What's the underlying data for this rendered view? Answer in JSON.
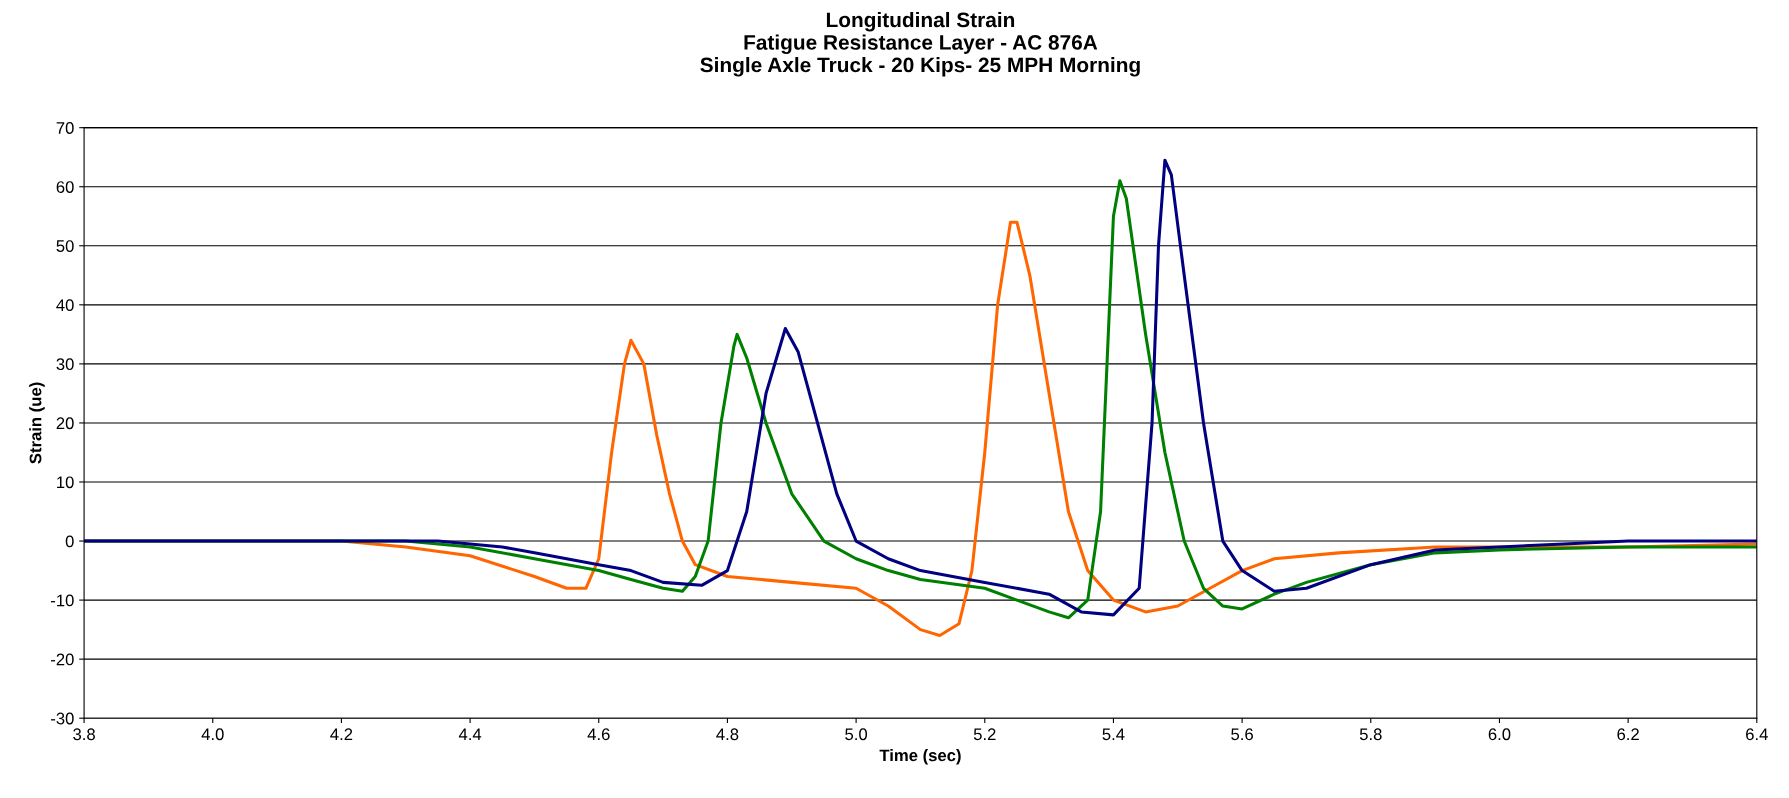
{
  "chart_data": {
    "type": "line",
    "title": "Longitudinal Strain\nFatigue Resistance Layer - AC 876A\nSingle Axle Truck - 20 Kips- 25 MPH Morning",
    "xlabel": "Time (sec)",
    "ylabel": "Strain (ue)",
    "xlim": [
      3.8,
      6.4
    ],
    "xticks": [
      {
        "value": 3.8,
        "label": "3.8"
      },
      {
        "value": 4.0,
        "label": "4.0"
      },
      {
        "value": 4.2,
        "label": "4.2"
      },
      {
        "value": 4.4,
        "label": "4.4"
      },
      {
        "value": 4.6,
        "label": "4.6"
      },
      {
        "value": 4.8,
        "label": "4.8"
      },
      {
        "value": 5.0,
        "label": "5.0"
      },
      {
        "value": 5.2,
        "label": "5.2"
      },
      {
        "value": 5.4,
        "label": "5.4"
      },
      {
        "value": 5.6,
        "label": "5.6"
      },
      {
        "value": 5.8,
        "label": "5.8"
      },
      {
        "value": 6.0,
        "label": "6.0"
      },
      {
        "value": 6.2,
        "label": "6.2"
      },
      {
        "value": 6.4,
        "label": "6.4"
      }
    ],
    "ylim": [
      -30,
      70
    ],
    "yticks": [
      -30,
      -20,
      -10,
      0,
      10,
      20,
      30,
      40,
      50,
      60,
      70
    ],
    "grid": "y",
    "legend": false,
    "series": [
      {
        "color": "#ff6600",
        "x": [
          3.8,
          4.0,
          4.2,
          4.3,
          4.4,
          4.5,
          4.55,
          4.58,
          4.6,
          4.62,
          4.64,
          4.65,
          4.67,
          4.69,
          4.71,
          4.73,
          4.75,
          4.8,
          4.9,
          5.0,
          5.05,
          5.1,
          5.13,
          5.16,
          5.18,
          5.2,
          5.22,
          5.24,
          5.25,
          5.27,
          5.3,
          5.33,
          5.36,
          5.4,
          5.45,
          5.5,
          5.55,
          5.6,
          5.65,
          5.75,
          5.9,
          6.0,
          6.2,
          6.4
        ],
        "values": [
          0,
          0,
          0,
          -1,
          -2.5,
          -6,
          -8,
          -8,
          -3,
          15,
          30,
          34,
          30,
          18,
          8,
          0,
          -4,
          -6,
          -7,
          -8,
          -11,
          -15,
          -16,
          -14,
          -5,
          15,
          40,
          54,
          54,
          45,
          25,
          5,
          -5,
          -10,
          -12,
          -11,
          -8,
          -5,
          -3,
          -2,
          -1,
          -1,
          -1,
          -0.5
        ]
      },
      {
        "color": "#008000",
        "x": [
          3.8,
          4.0,
          4.3,
          4.4,
          4.5,
          4.6,
          4.65,
          4.7,
          4.73,
          4.75,
          4.77,
          4.79,
          4.81,
          4.815,
          4.83,
          4.86,
          4.9,
          4.95,
          5.0,
          5.05,
          5.1,
          5.2,
          5.25,
          5.3,
          5.33,
          5.36,
          5.38,
          5.39,
          5.4,
          5.41,
          5.42,
          5.45,
          5.48,
          5.51,
          5.54,
          5.57,
          5.6,
          5.65,
          5.7,
          5.8,
          5.9,
          6.0,
          6.2,
          6.4
        ],
        "values": [
          0,
          0,
          0,
          -1,
          -3,
          -5,
          -6.5,
          -8,
          -8.5,
          -6,
          0,
          20,
          33,
          35,
          31,
          20,
          8,
          0,
          -3,
          -5,
          -6.5,
          -8,
          -10,
          -12,
          -13,
          -10,
          5,
          30,
          55,
          61,
          58,
          35,
          15,
          0,
          -8,
          -11,
          -11.5,
          -9,
          -7,
          -4,
          -2,
          -1.5,
          -1,
          -1
        ]
      },
      {
        "color": "#000080",
        "x": [
          3.8,
          4.0,
          4.35,
          4.45,
          4.5,
          4.6,
          4.65,
          4.7,
          4.76,
          4.8,
          4.83,
          4.86,
          4.89,
          4.91,
          4.94,
          4.97,
          5.0,
          5.05,
          5.1,
          5.2,
          5.3,
          5.35,
          5.4,
          5.44,
          5.46,
          5.47,
          5.48,
          5.49,
          5.51,
          5.54,
          5.57,
          5.6,
          5.65,
          5.7,
          5.8,
          5.9,
          6.0,
          6.1,
          6.2,
          6.4
        ],
        "values": [
          0,
          0,
          0,
          -1,
          -2,
          -4,
          -5,
          -7,
          -7.5,
          -5,
          5,
          25,
          36,
          32,
          20,
          8,
          0,
          -3,
          -5,
          -7,
          -9,
          -12,
          -12.5,
          -8,
          20,
          50,
          64.5,
          62,
          45,
          20,
          0,
          -5,
          -8.5,
          -8,
          -4,
          -1.5,
          -1,
          -0.5,
          0,
          0
        ]
      }
    ]
  }
}
